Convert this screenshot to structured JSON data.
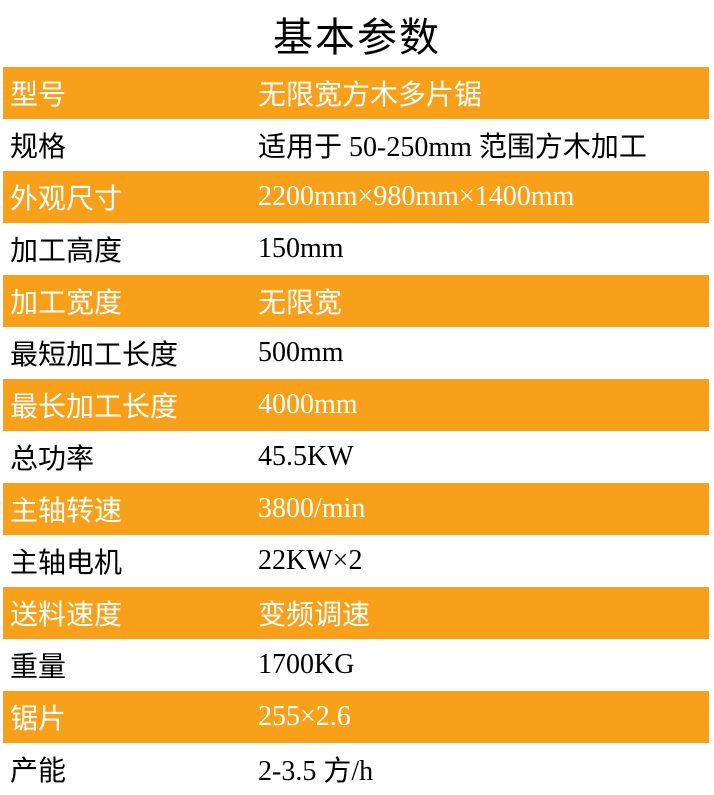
{
  "title": "基本参数",
  "colors": {
    "accent": "#F9A01B",
    "highlight_text": "#FFFFFF",
    "body_text": "#000000",
    "background": "#FFFFFF"
  },
  "table": {
    "rows": [
      {
        "label": "型号",
        "value": "无限宽方木多片锯",
        "highlight": true
      },
      {
        "label": "规格",
        "value": "适用于 50-250mm 范围方木加工",
        "highlight": false
      },
      {
        "label": "外观尺寸",
        "value": "2200mm×980mm×1400mm",
        "highlight": true
      },
      {
        "label": "加工高度",
        "value": "150mm",
        "highlight": false
      },
      {
        "label": "加工宽度",
        "value": "无限宽",
        "highlight": true
      },
      {
        "label": "最短加工长度",
        "value": "500mm",
        "highlight": false
      },
      {
        "label": "最长加工长度",
        "value": "4000mm",
        "highlight": true
      },
      {
        "label": "总功率",
        "value": "45.5KW",
        "highlight": false
      },
      {
        "label": "主轴转速",
        "value": "3800/min",
        "highlight": true
      },
      {
        "label": "主轴电机",
        "value": "22KW×2",
        "highlight": false
      },
      {
        "label": "送料速度",
        "value": "变频调速",
        "highlight": true
      },
      {
        "label": "重量",
        "value": "1700KG",
        "highlight": false
      },
      {
        "label": "锯片",
        "value": "255×2.6",
        "highlight": true
      },
      {
        "label": "产能",
        "value": "2-3.5 方/h",
        "highlight": false
      }
    ]
  }
}
